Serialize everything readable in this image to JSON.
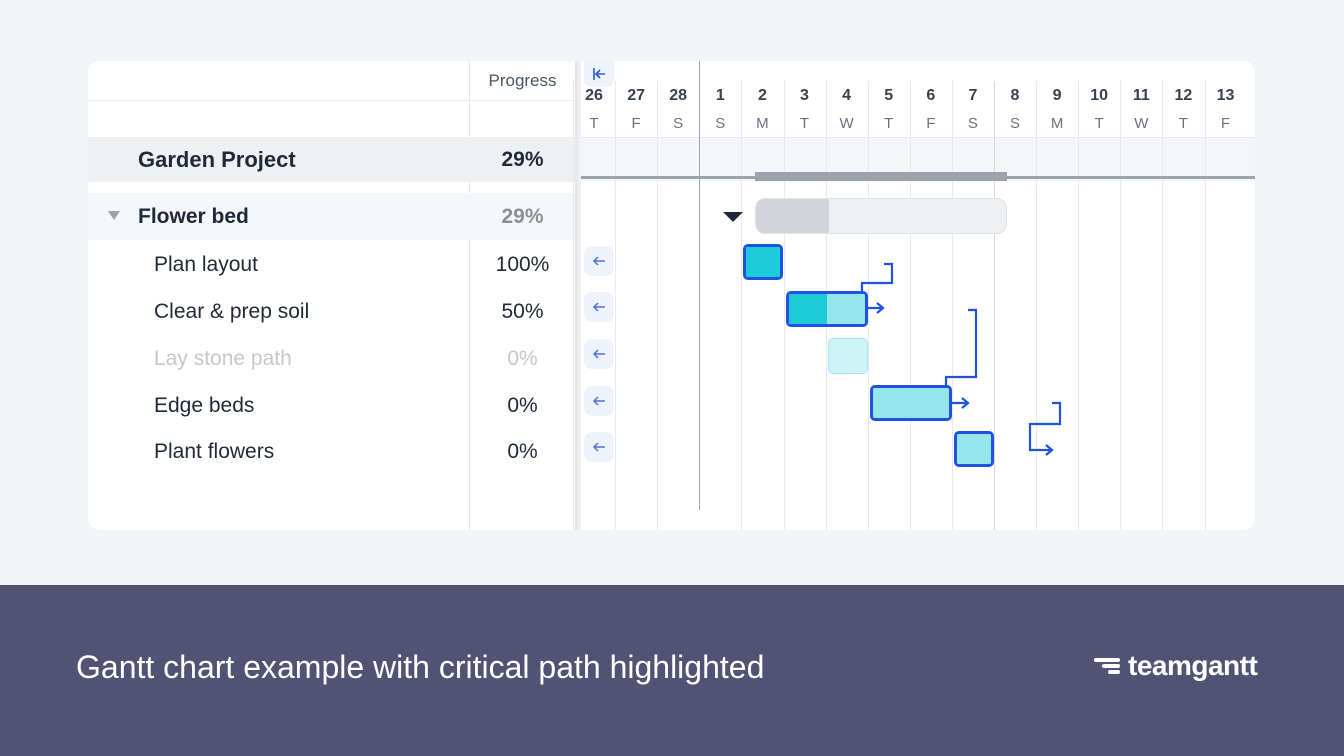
{
  "task_list": {
    "progress_header": "Progress",
    "project": {
      "name": "Garden Project",
      "progress": "29%"
    },
    "group": {
      "name": "Flower bed",
      "progress": "29%"
    },
    "tasks": [
      {
        "name": "Plan layout",
        "progress": "100%"
      },
      {
        "name": "Clear & prep soil",
        "progress": "50%"
      },
      {
        "name": "Lay stone path",
        "progress": "0%"
      },
      {
        "name": "Edge beds",
        "progress": "0%"
      },
      {
        "name": "Plant flowers",
        "progress": "0%"
      }
    ]
  },
  "timeline": {
    "days": [
      {
        "num": "26",
        "letter": "T"
      },
      {
        "num": "27",
        "letter": "F"
      },
      {
        "num": "28",
        "letter": "S"
      },
      {
        "num": "1",
        "letter": "S"
      },
      {
        "num": "2",
        "letter": "M"
      },
      {
        "num": "3",
        "letter": "T"
      },
      {
        "num": "4",
        "letter": "W"
      },
      {
        "num": "5",
        "letter": "T"
      },
      {
        "num": "6",
        "letter": "F"
      },
      {
        "num": "7",
        "letter": "S"
      },
      {
        "num": "8",
        "letter": "S"
      },
      {
        "num": "9",
        "letter": "M"
      },
      {
        "num": "10",
        "letter": "T"
      },
      {
        "num": "11",
        "letter": "W"
      },
      {
        "num": "12",
        "letter": "T"
      },
      {
        "num": "13",
        "letter": "F"
      }
    ],
    "group_progress": 0.29,
    "bars": [
      {
        "task": "Plan layout",
        "start_day": "2",
        "end_day": "2",
        "progress": 1.0,
        "critical": true
      },
      {
        "task": "Clear & prep soil",
        "start_day": "3",
        "end_day": "4",
        "progress": 0.5,
        "critical": true
      },
      {
        "task": "Lay stone path",
        "start_day": "4",
        "end_day": "4",
        "progress": 0.0,
        "critical": false
      },
      {
        "task": "Edge beds",
        "start_day": "5",
        "end_day": "6",
        "progress": 0.0,
        "critical": true
      },
      {
        "task": "Plant flowers",
        "start_day": "7",
        "end_day": "7",
        "progress": 0.0,
        "critical": true
      }
    ]
  },
  "icons": {
    "collapse": "collapse-left-icon",
    "row_arrow": "arrow-left-icon",
    "brand": "teamgantt-logo-icon"
  },
  "colors": {
    "critical_border": "#1f52e0",
    "done_fill": "#1ecbd8",
    "remaining_fill": "#94e6ec",
    "light_fill": "#cdf3f6",
    "footer_bg": "#525275"
  },
  "footer": {
    "caption": "Gantt chart example with critical path highlighted",
    "brand": "teamgantt"
  }
}
